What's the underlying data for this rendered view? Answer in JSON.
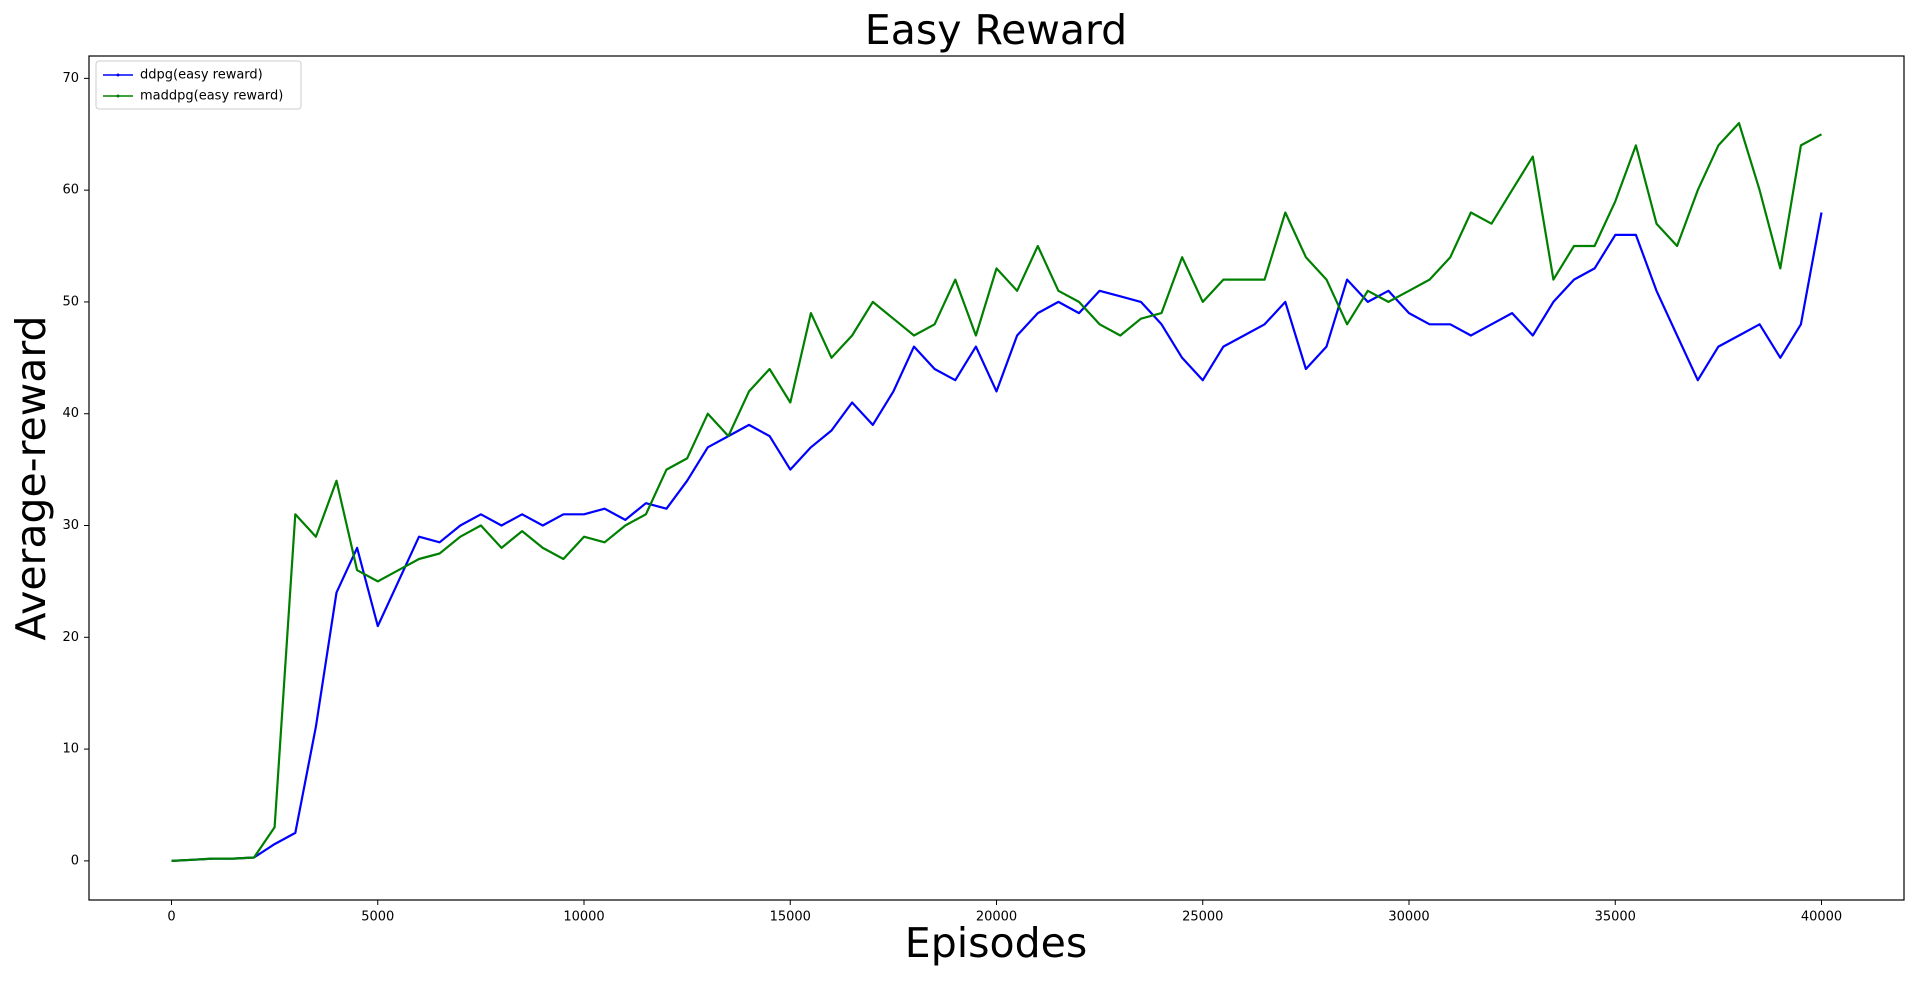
{
  "chart_data": {
    "type": "line",
    "title": "Easy Reward",
    "x_label": "Episodes",
    "y_label": "Average-reward",
    "x": [
      0,
      500,
      1000,
      1500,
      2000,
      2500,
      3000,
      3500,
      4000,
      4500,
      5000,
      5500,
      6000,
      6500,
      7000,
      7500,
      8000,
      8500,
      9000,
      9500,
      10000,
      10500,
      11000,
      11500,
      12000,
      12500,
      13000,
      13500,
      14000,
      14500,
      15000,
      15500,
      16000,
      16500,
      17000,
      17500,
      18000,
      18500,
      19000,
      19500,
      20000,
      20500,
      21000,
      21500,
      22000,
      22500,
      23000,
      23500,
      24000,
      24500,
      25000,
      25500,
      26000,
      26500,
      27000,
      27500,
      28000,
      28500,
      29000,
      29500,
      30000,
      30500,
      31000,
      31500,
      32000,
      32500,
      33000,
      33500,
      34000,
      34500,
      35000,
      35500,
      36000,
      36500,
      37000,
      37500,
      38000,
      38500,
      39000,
      39500,
      40000
    ],
    "series": [
      {
        "name": "ddpg(easy reward)",
        "color": "#0000ff",
        "values": [
          0,
          0.1,
          0.2,
          0.2,
          0.3,
          1.5,
          2.5,
          12,
          24,
          28,
          21,
          25,
          29,
          28.5,
          30,
          31,
          30,
          31,
          30,
          31,
          31,
          31.5,
          30.5,
          32,
          31.5,
          34,
          37,
          38,
          39,
          38,
          35,
          37,
          38.5,
          41,
          39,
          42,
          46,
          44,
          43,
          46,
          42,
          47,
          49,
          50,
          49,
          51,
          50.5,
          50,
          48,
          45,
          43,
          46,
          47,
          48,
          50,
          44,
          46,
          52,
          50,
          51,
          49,
          48,
          48,
          47,
          48,
          49,
          47,
          50,
          52,
          53,
          56,
          56,
          51,
          47,
          43,
          46,
          47,
          48,
          45,
          48,
          58
        ]
      },
      {
        "name": "maddpg(easy reward)",
        "color": "#008000",
        "values": [
          0,
          0.1,
          0.2,
          0.2,
          0.3,
          3,
          31,
          29,
          34,
          26,
          25,
          26,
          27,
          27.5,
          29,
          30,
          28,
          29.5,
          28,
          27,
          29,
          28.5,
          30,
          31,
          35,
          36,
          40,
          38,
          42,
          44,
          41,
          49,
          45,
          47,
          50,
          48.5,
          47,
          48,
          52,
          47,
          53,
          51,
          55,
          51,
          50,
          48,
          47,
          48.5,
          49,
          54,
          50,
          52,
          52,
          52,
          58,
          54,
          52,
          48,
          51,
          50,
          51,
          52,
          54,
          58,
          57,
          60,
          63,
          52,
          55,
          55,
          59,
          64,
          57,
          55,
          60,
          64,
          66,
          60,
          53,
          64,
          65
        ]
      }
    ],
    "xlim": [
      -2000,
      42000
    ],
    "ylim": [
      -3.5,
      72
    ],
    "xticks": [
      0,
      5000,
      10000,
      15000,
      20000,
      25000,
      30000,
      35000,
      40000
    ],
    "yticks": [
      0,
      10,
      20,
      30,
      40,
      50,
      60,
      70
    ],
    "legend": "upper left"
  }
}
